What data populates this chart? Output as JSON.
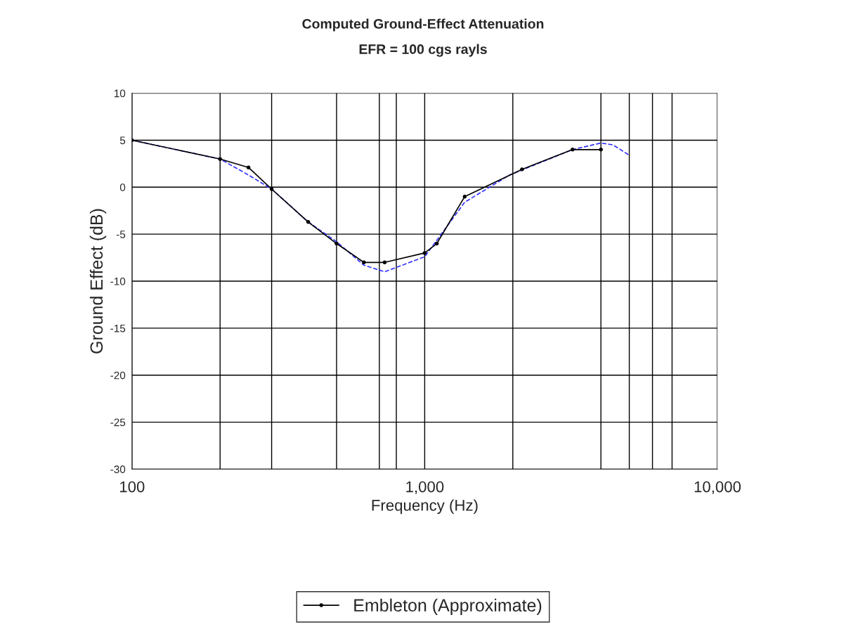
{
  "chart_data": {
    "type": "line",
    "title": "Computed Ground-Effect Attenuation",
    "subtitle": "EFR = 100 cgs rayls",
    "xlabel": "Frequency (Hz)",
    "ylabel": "Ground Effect (dB)",
    "log": "x",
    "xlim": [
      100,
      10000
    ],
    "ylim": [
      -30,
      10
    ],
    "xticks": [
      {
        "value": 100,
        "label": "100"
      },
      {
        "value": 200,
        "label": null
      },
      {
        "value": 300,
        "label": null
      },
      {
        "value": 500,
        "label": null
      },
      {
        "value": 700,
        "label": null
      },
      {
        "value": 800,
        "label": null
      },
      {
        "value": 1000,
        "label": "1,000"
      },
      {
        "value": 2000,
        "label": null
      },
      {
        "value": 4000,
        "label": null
      },
      {
        "value": 5000,
        "label": null
      },
      {
        "value": 6000,
        "label": null
      },
      {
        "value": 7000,
        "label": null
      },
      {
        "value": 10000,
        "label": "10,000"
      }
    ],
    "yticks": [
      -30,
      -25,
      -20,
      -15,
      -10,
      -5,
      0,
      5,
      10
    ],
    "grid": true,
    "legend": "bottom",
    "series": [
      {
        "color": "#3333ff",
        "line_style": "dashed",
        "marker": "none",
        "x": [
          100,
          200,
          250,
          300,
          400,
          500,
          620,
          730,
          1000,
          1370,
          1950,
          3200,
          4000,
          4400,
          5000
        ],
        "values": [
          5,
          3,
          1.3,
          -0.2,
          -3.7,
          -5.8,
          -8.3,
          -9,
          -7.4,
          -1.6,
          1.3,
          4,
          4.7,
          4.5,
          3.4
        ]
      },
      {
        "name": "Embleton (Approximate)",
        "color": "#000000",
        "line_style": "solid",
        "marker": "circle",
        "x": [
          100,
          200,
          250,
          300,
          400,
          500,
          620,
          730,
          1000,
          1100,
          1370,
          2150,
          3200,
          4000
        ],
        "values": [
          5,
          3,
          2.1,
          -0.2,
          -3.7,
          -6,
          -8,
          -8,
          -7,
          -6,
          -1,
          1.9,
          4,
          4
        ]
      }
    ]
  }
}
